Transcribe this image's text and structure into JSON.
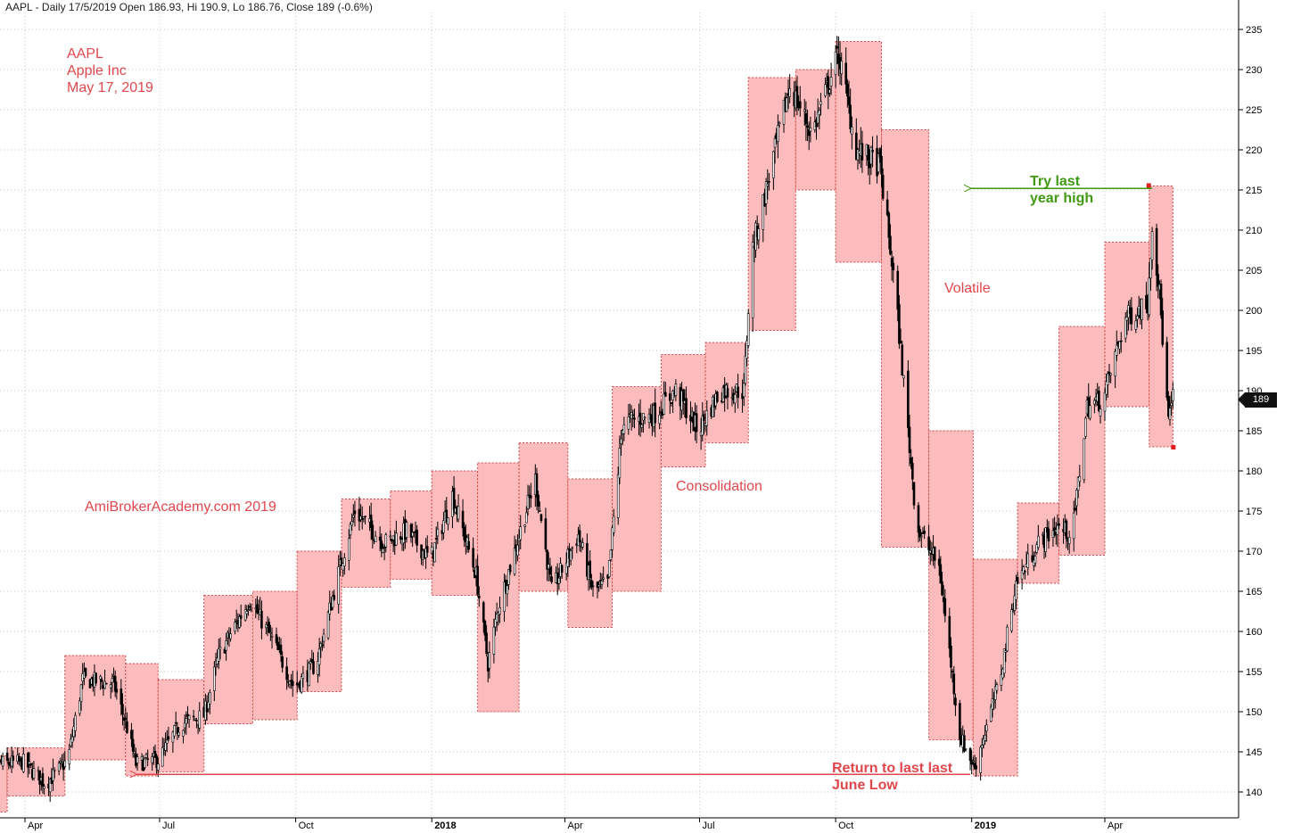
{
  "header": {
    "text": "AAPL - Daily 17/5/2019 Open 186.93, Hi 190.9, Lo 186.76, Close 189 (-0.6%)"
  },
  "stock_info": {
    "ticker": "AAPL",
    "name": "Apple Inc",
    "date": "May 17, 2019"
  },
  "annotations": {
    "watermark": "AmiBrokerAcademy.com  2019",
    "consolidation": "Consolidation",
    "volatile": "Volatile",
    "try_high_line1": "Try last",
    "try_high_line2": "year high",
    "return_low_line1": "Return to last last",
    "return_low_line2": "June Low"
  },
  "last_price_label": "189",
  "colors": {
    "box_fill": "#fcbcbe",
    "box_border": "#d04848",
    "candle": "#000000",
    "annotation_red": "#e0474c",
    "annotation_green": "#3f9a12",
    "grid": "#c8c8c8"
  },
  "chart_data": {
    "type": "candlestick",
    "title": "AAPL - Daily 17/5/2019",
    "y_axis": {
      "position": "right",
      "range": [
        136,
        236
      ],
      "ticks": [
        140,
        145,
        150,
        155,
        160,
        165,
        170,
        175,
        180,
        185,
        190,
        195,
        200,
        205,
        210,
        215,
        220,
        225,
        230,
        235
      ]
    },
    "x_axis": {
      "start": "2017-03-01",
      "end": "2019-05-31",
      "ticks": [
        {
          "date": "2017-04-01",
          "label": "Apr"
        },
        {
          "date": "2017-07-01",
          "label": "Jul"
        },
        {
          "date": "2017-10-01",
          "label": "Oct"
        },
        {
          "date": "2018-01-01",
          "label": "2018"
        },
        {
          "date": "2018-04-01",
          "label": "Apr"
        },
        {
          "date": "2018-07-01",
          "label": "Jul"
        },
        {
          "date": "2018-10-01",
          "label": "Oct"
        },
        {
          "date": "2019-01-01",
          "label": "2019"
        },
        {
          "date": "2019-04-01",
          "label": "Apr"
        }
      ]
    },
    "price_anchors": [
      {
        "date": "2017-03-01",
        "close": 139.5
      },
      {
        "date": "2017-03-10",
        "close": 143.5
      },
      {
        "date": "2017-03-31",
        "close": 143.7
      },
      {
        "date": "2017-04-15",
        "close": 141.0
      },
      {
        "date": "2017-04-30",
        "close": 144.0
      },
      {
        "date": "2017-05-10",
        "close": 154.0
      },
      {
        "date": "2017-05-31",
        "close": 153.5
      },
      {
        "date": "2017-06-09",
        "close": 148.0
      },
      {
        "date": "2017-06-15",
        "close": 143.5
      },
      {
        "date": "2017-06-30",
        "close": 144.0
      },
      {
        "date": "2017-07-15",
        "close": 148.5
      },
      {
        "date": "2017-07-31",
        "close": 149.5
      },
      {
        "date": "2017-08-10",
        "close": 157.0
      },
      {
        "date": "2017-08-31",
        "close": 164.0
      },
      {
        "date": "2017-09-15",
        "close": 159.0
      },
      {
        "date": "2017-09-30",
        "close": 153.0
      },
      {
        "date": "2017-10-15",
        "close": 156.0
      },
      {
        "date": "2017-10-31",
        "close": 168.0
      },
      {
        "date": "2017-11-10",
        "close": 175.0
      },
      {
        "date": "2017-11-30",
        "close": 171.0
      },
      {
        "date": "2017-12-15",
        "close": 172.5
      },
      {
        "date": "2017-12-31",
        "close": 169.0
      },
      {
        "date": "2018-01-15",
        "close": 177.0
      },
      {
        "date": "2018-01-31",
        "close": 167.0
      },
      {
        "date": "2018-02-08",
        "close": 156.0
      },
      {
        "date": "2018-02-15",
        "close": 163.0
      },
      {
        "date": "2018-03-12",
        "close": 179.0
      },
      {
        "date": "2018-03-23",
        "close": 165.0
      },
      {
        "date": "2018-04-10",
        "close": 172.0
      },
      {
        "date": "2018-04-20",
        "close": 165.0
      },
      {
        "date": "2018-04-30",
        "close": 166.0
      },
      {
        "date": "2018-05-10",
        "close": 186.0
      },
      {
        "date": "2018-05-31",
        "close": 187.0
      },
      {
        "date": "2018-06-15",
        "close": 190.0
      },
      {
        "date": "2018-06-30",
        "close": 185.0
      },
      {
        "date": "2018-07-15",
        "close": 190.0
      },
      {
        "date": "2018-07-31",
        "close": 190.0
      },
      {
        "date": "2018-08-05",
        "close": 207.0
      },
      {
        "date": "2018-08-31",
        "close": 228.0
      },
      {
        "date": "2018-09-15",
        "close": 222.0
      },
      {
        "date": "2018-10-03",
        "close": 232.0
      },
      {
        "date": "2018-10-15",
        "close": 220.0
      },
      {
        "date": "2018-10-31",
        "close": 218.0
      },
      {
        "date": "2018-11-10",
        "close": 203.0
      },
      {
        "date": "2018-11-25",
        "close": 173.0
      },
      {
        "date": "2018-12-10",
        "close": 168.0
      },
      {
        "date": "2018-12-24",
        "close": 147.0
      },
      {
        "date": "2019-01-03",
        "close": 143.0
      },
      {
        "date": "2019-01-20",
        "close": 154.0
      },
      {
        "date": "2019-01-31",
        "close": 166.0
      },
      {
        "date": "2019-02-15",
        "close": 171.0
      },
      {
        "date": "2019-02-28",
        "close": 173.0
      },
      {
        "date": "2019-03-10",
        "close": 172.0
      },
      {
        "date": "2019-03-20",
        "close": 188.0
      },
      {
        "date": "2019-03-31",
        "close": 189.0
      },
      {
        "date": "2019-04-15",
        "close": 199.0
      },
      {
        "date": "2019-04-30",
        "close": 201.0
      },
      {
        "date": "2019-05-03",
        "close": 211.0
      },
      {
        "date": "2019-05-08",
        "close": 202.0
      },
      {
        "date": "2019-05-14",
        "close": 186.0
      },
      {
        "date": "2019-05-17",
        "close": 189.0
      }
    ],
    "boxes": [
      {
        "start": "2017-03-01",
        "end": "2017-03-20",
        "low": 137.5,
        "high": 144.5
      },
      {
        "start": "2017-03-20",
        "end": "2017-04-28",
        "low": 139.5,
        "high": 145.5
      },
      {
        "start": "2017-04-28",
        "end": "2017-06-08",
        "low": 144.0,
        "high": 157.0
      },
      {
        "start": "2017-06-08",
        "end": "2017-06-30",
        "low": 142.0,
        "high": 156.0
      },
      {
        "start": "2017-06-30",
        "end": "2017-07-31",
        "low": 142.5,
        "high": 154.0
      },
      {
        "start": "2017-07-31",
        "end": "2017-09-02",
        "low": 148.5,
        "high": 164.5
      },
      {
        "start": "2017-09-02",
        "end": "2017-10-02",
        "low": 149.0,
        "high": 165.0
      },
      {
        "start": "2017-10-02",
        "end": "2017-11-01",
        "low": 152.5,
        "high": 170.0
      },
      {
        "start": "2017-11-01",
        "end": "2017-12-04",
        "low": 165.5,
        "high": 176.5
      },
      {
        "start": "2017-12-04",
        "end": "2018-01-01",
        "low": 166.5,
        "high": 177.5
      },
      {
        "start": "2018-01-01",
        "end": "2018-02-01",
        "low": 164.5,
        "high": 180.0
      },
      {
        "start": "2018-02-01",
        "end": "2018-03-01",
        "low": 150.0,
        "high": 181.0
      },
      {
        "start": "2018-03-01",
        "end": "2018-04-03",
        "low": 165.0,
        "high": 183.5
      },
      {
        "start": "2018-04-03",
        "end": "2018-05-03",
        "low": 160.5,
        "high": 179.0
      },
      {
        "start": "2018-05-03",
        "end": "2018-06-05",
        "low": 165.0,
        "high": 190.5
      },
      {
        "start": "2018-06-05",
        "end": "2018-07-05",
        "low": 180.5,
        "high": 194.5
      },
      {
        "start": "2018-07-05",
        "end": "2018-08-03",
        "low": 183.5,
        "high": 196.0
      },
      {
        "start": "2018-08-03",
        "end": "2018-09-04",
        "low": 197.5,
        "high": 229.0
      },
      {
        "start": "2018-09-04",
        "end": "2018-10-01",
        "low": 215.0,
        "high": 230.0
      },
      {
        "start": "2018-10-01",
        "end": "2018-11-01",
        "low": 206.0,
        "high": 233.5
      },
      {
        "start": "2018-11-01",
        "end": "2018-12-03",
        "low": 170.5,
        "high": 222.5
      },
      {
        "start": "2018-12-03",
        "end": "2019-01-02",
        "low": 146.5,
        "high": 185.0
      },
      {
        "start": "2019-01-02",
        "end": "2019-02-01",
        "low": 142.0,
        "high": 169.0
      },
      {
        "start": "2019-02-01",
        "end": "2019-03-01",
        "low": 166.0,
        "high": 176.0
      },
      {
        "start": "2019-03-01",
        "end": "2019-04-01",
        "low": 169.5,
        "high": 198.0
      },
      {
        "start": "2019-04-01",
        "end": "2019-05-01",
        "low": 188.0,
        "high": 208.5
      },
      {
        "start": "2019-05-01",
        "end": "2019-05-17",
        "low": 183.0,
        "high": 215.5
      }
    ],
    "reference_lines": [
      {
        "name": "last-year-high",
        "value": 215.2,
        "from": "2019-05-03",
        "to": "2018-12-31",
        "color": "#3f9a12"
      },
      {
        "name": "june-low",
        "value": 142.2,
        "from": "2018-12-31",
        "to": "2017-06-15",
        "color": "#e0474c"
      }
    ]
  }
}
